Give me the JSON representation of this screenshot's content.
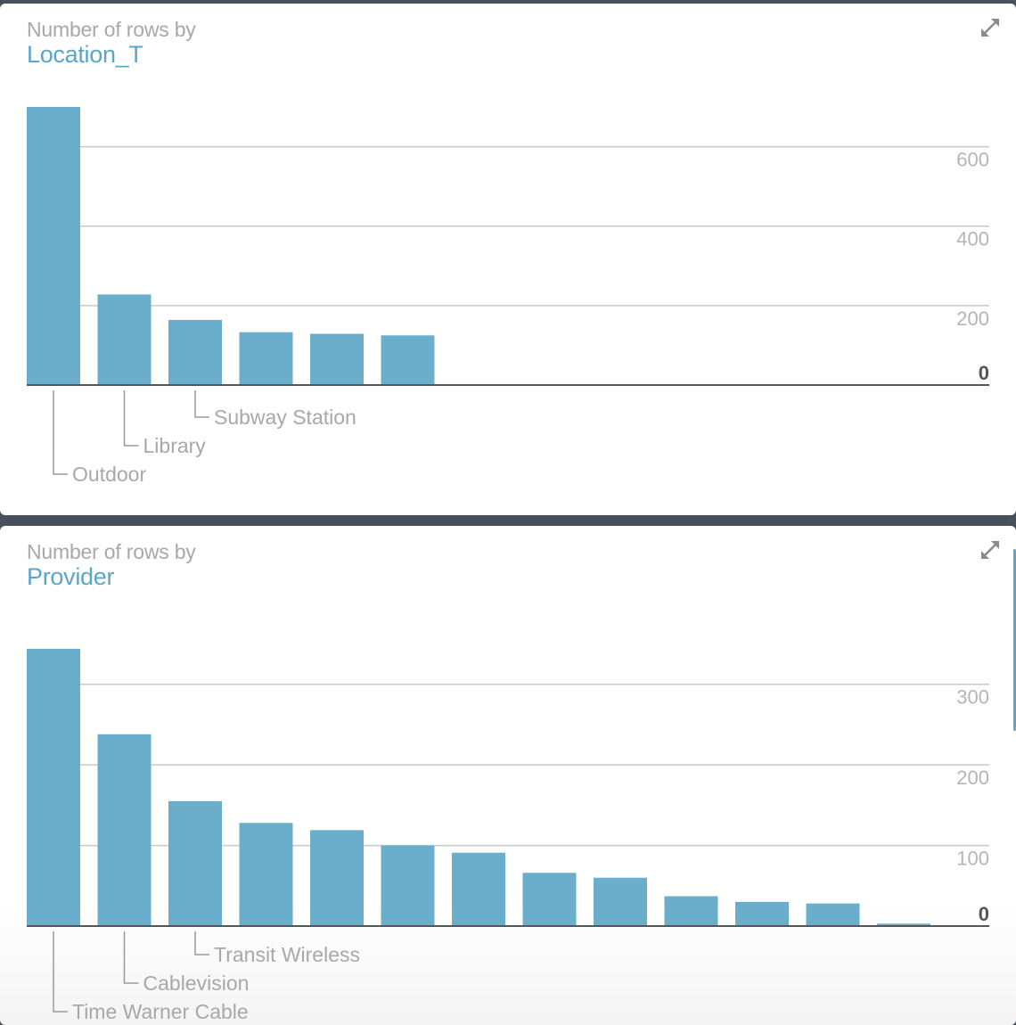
{
  "panels": [
    {
      "subtitle": "Number of rows by",
      "title": "Location_T",
      "expand_icon": "expand-arrows-icon",
      "chart_data": {
        "type": "bar",
        "title": "Number of rows by Location_T",
        "xlabel": "Location_T",
        "ylabel": "",
        "ylim": [
          0,
          700
        ],
        "yticks": [
          0,
          200,
          400,
          600
        ],
        "ytick_labels": [
          "0",
          "200",
          "400",
          "600"
        ],
        "categories": [
          "Outdoor",
          "Library",
          "Subway Station",
          "",
          "",
          ""
        ],
        "values": [
          700,
          228,
          164,
          133,
          129,
          125
        ],
        "shown_labels": [
          "Outdoor",
          "Library",
          "Subway Station"
        ],
        "bar_color": "#6aaecb",
        "grid": true,
        "y_axis_side": "right"
      }
    },
    {
      "subtitle": "Number of rows by",
      "title": "Provider",
      "expand_icon": "expand-arrows-icon",
      "chart_data": {
        "type": "bar",
        "title": "Number of rows by Provider",
        "xlabel": "Provider",
        "ylabel": "",
        "ylim": [
          0,
          345
        ],
        "yticks": [
          0,
          100,
          200,
          300
        ],
        "ytick_labels": [
          "0",
          "100",
          "200",
          "300"
        ],
        "categories": [
          "Time Warner Cable",
          "Cablevision",
          "Transit Wireless",
          "",
          "",
          "",
          "",
          "",
          "",
          "",
          "",
          "",
          ""
        ],
        "values": [
          344,
          238,
          155,
          128,
          119,
          100,
          91,
          66,
          60,
          37,
          30,
          28,
          3
        ],
        "shown_labels": [
          "Time Warner Cable",
          "Cablevision",
          "Transit Wireless"
        ],
        "bar_color": "#6aaecb",
        "grid": true,
        "y_axis_side": "right"
      }
    }
  ]
}
